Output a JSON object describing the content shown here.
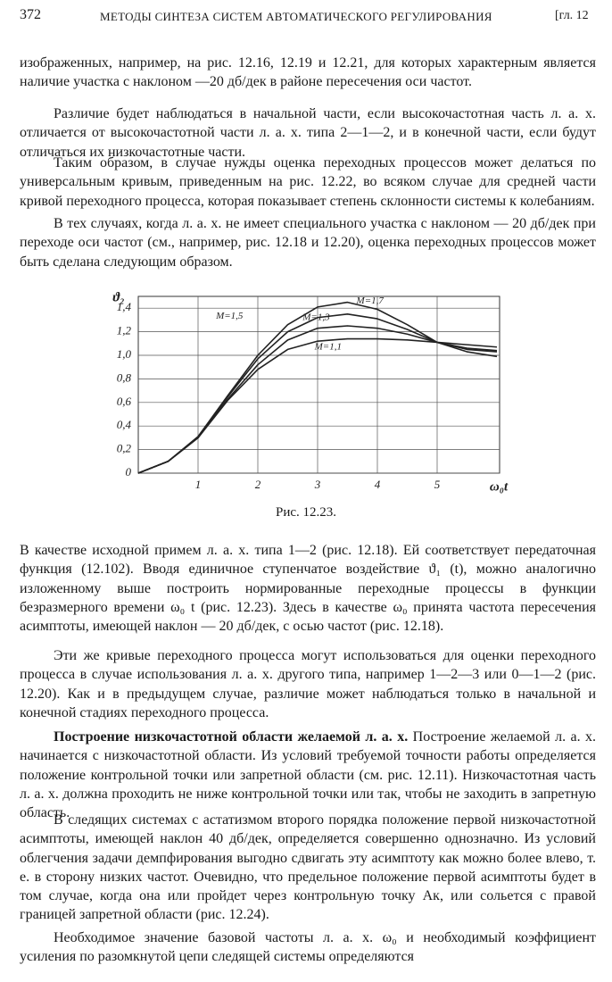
{
  "header": {
    "page_number": "372",
    "running_title": "МЕТОДЫ СИНТЕЗА СИСТЕМ АВТОМАТИЧЕСКОГО РЕГУЛИРОВАНИЯ",
    "chapter": "[гл. 12"
  },
  "paragraphs_before": [
    "изображенных, например, на рис. 12.16, 12.19 и 12.21, для которых характерным является наличие участка с наклоном —20 дб/дек в районе пересечения оси частот.",
    "Различие будет наблюдаться в начальной части, если высокочастотная часть л. а. х. отличается от высокочастотной части л. а. х. типа 2—1—2, и в конечной части, если будут отличаться их низкочастотные части.",
    "Таким образом, в случае нужды оценка переходных процессов может делаться по универсальным кривым, приведенным на рис. 12.22, во всяком случае для средней части кривой переходного процесса, которая показывает степень склонности системы к колебаниям.",
    "В тех случаях, когда л. а. х. не имеет специального участка с наклоном — 20 дб/дек при переходе оси частот (см., например, рис. 12.18 и 12.20), оценка переходных процессов может быть сделана следующим образом."
  ],
  "chart_data": {
    "type": "line",
    "caption": "Рис. 12.23.",
    "x_label": "ω₀t",
    "y_label": "ϑ₂",
    "x": [
      0,
      0.5,
      1,
      1.5,
      2,
      2.5,
      3,
      3.5,
      4,
      4.5,
      5,
      5.5,
      6
    ],
    "series": [
      {
        "name": "M=1,1",
        "color": "#222222",
        "values": [
          0,
          0.1,
          0.3,
          0.62,
          0.88,
          1.05,
          1.12,
          1.14,
          1.14,
          1.13,
          1.11,
          1.09,
          1.07
        ]
      },
      {
        "name": "M=1,3",
        "color": "#222222",
        "values": [
          0,
          0.1,
          0.3,
          0.63,
          0.92,
          1.13,
          1.23,
          1.25,
          1.23,
          1.18,
          1.11,
          1.06,
          1.04
        ]
      },
      {
        "name": "M=1,5",
        "color": "#222222",
        "values": [
          0,
          0.1,
          0.31,
          0.65,
          0.97,
          1.2,
          1.32,
          1.35,
          1.31,
          1.22,
          1.11,
          1.05,
          1.03
        ]
      },
      {
        "name": "M=1,7",
        "color": "#222222",
        "values": [
          0,
          0.1,
          0.31,
          0.66,
          1.0,
          1.26,
          1.41,
          1.45,
          1.39,
          1.26,
          1.11,
          1.03,
          0.99
        ]
      }
    ],
    "xlim": [
      0,
      6
    ],
    "ylim": [
      0,
      1.5
    ],
    "xticks": [
      1,
      2,
      3,
      4,
      5
    ],
    "yticks": [
      0,
      {
        "value": 0.2,
        "label": "0,2"
      },
      {
        "value": 0.4,
        "label": "0,4"
      },
      {
        "value": 0.6,
        "label": "0,6"
      },
      {
        "value": 0.8,
        "label": "0,8"
      },
      {
        "value": 1.0,
        "label": "1,0"
      },
      {
        "value": 1.2,
        "label": "1,2"
      },
      {
        "value": 1.4,
        "label": "1,4"
      }
    ],
    "grid": true
  },
  "paragraphs_after": [
    {
      "text": "В качестве исходной примем л. а. х. типа 1—2 (рис. 12.18). Ей соответствует передаточная функция (12.102). Вводя единичное ступенчатое воздействие ϑ₁ (t), можно аналогично изложенному выше построить нормированные переходные процессы в функции безразмерного времени ω₀ t (рис. 12.23). Здесь в качестве ω₀ принята частота пересечения асимптоты, имеющей наклон — 20 дб/дек, с осью частот (рис. 12.18)."
    },
    {
      "text": "Эти же кривые переходного процесса могут использоваться для оценки переходного процесса в случае использования л. а. х. другого типа, например 1—2—3 или 0—1—2 (рис. 12.20). Как и в предыдущем случае, различие может наблюдаться только в начальной и конечной стадиях переходного процесса."
    },
    {
      "heading": "Построение низкочастотной области желаемой л. а. х.",
      "text": "Построение желаемой л. а. х. начинается с низкочастотной области. Из условий требуемой точности работы определяется положение контрольной точки или запретной области (см. рис. 12.11). Низкочастотная часть л. а. х. должна проходить не ниже контрольной точки или так, чтобы не заходить в запретную область."
    },
    {
      "text": "В следящих системах с астатизмом второго порядка положение первой низкочастотной асимптоты, имеющей наклон 40 дб/дек, определяется совершенно однозначно. Из условий облегчения задачи демпфирования выгодно сдвигать эту асимптоту как можно более влево, т. е. в сторону низких частот. Очевидно, что предельное положение первой асимптоты будет в том случае, когда она или пройдет через контрольную точку Aк, или сольется с правой границей запретной области (рис. 12.24)."
    },
    {
      "text": "Необходимое значение базовой частоты л. а. х. ω₀ и необходимый коэффициент усиления по разомкнутой цепи следящей системы определяются"
    }
  ]
}
